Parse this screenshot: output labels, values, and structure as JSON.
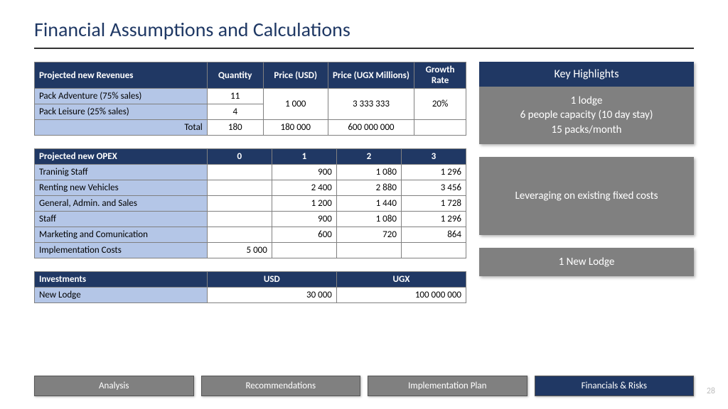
{
  "title": "Financial Assumptions and Calculations",
  "pageNumber": "28",
  "colors": {
    "titleColor": "#1f3864",
    "headerBg": "#203864",
    "rowHeadBg": "#b4c6e7",
    "panelBodyBg": "#808080",
    "tabInactiveBg": "#808080",
    "tabActiveBg": "#203864"
  },
  "revenues": {
    "headers": [
      "Projected new Revenues",
      "Quantity",
      "Price (USD)",
      "Price (UGX Millions)",
      "Growth Rate"
    ],
    "rows": [
      {
        "label": "Pack Adventure (75% sales)",
        "qty": "11"
      },
      {
        "label": "Pack Leisure (25% sales)",
        "qty": "4"
      }
    ],
    "sharedPriceUSD": "1 000",
    "sharedPriceUGX": "3 333 333",
    "sharedGrowth": "20%",
    "total": {
      "label": "Total",
      "qty": "180",
      "priceUSD": "180 000",
      "priceUGX": "600 000 000",
      "growth": ""
    }
  },
  "opex": {
    "headers": [
      "Projected new OPEX",
      "0",
      "1",
      "2",
      "3"
    ],
    "rows": [
      {
        "label": "Traninig Staff",
        "y0": "",
        "y1": "900",
        "y2": "1 080",
        "y3": "1 296"
      },
      {
        "label": "Renting new Vehicles",
        "y0": "",
        "y1": "2 400",
        "y2": "2 880",
        "y3": "3 456"
      },
      {
        "label": "General, Admin. and Sales",
        "y0": "",
        "y1": "1 200",
        "y2": "1 440",
        "y3": "1 728"
      },
      {
        "label": "Staff",
        "y0": "",
        "y1": "900",
        "y2": "1 080",
        "y3": "1 296"
      },
      {
        "label": "Marketing and Comunication",
        "y0": "",
        "y1": "600",
        "y2": "720",
        "y3": "864"
      },
      {
        "label": "Implementation Costs",
        "y0": "5 000",
        "y1": "",
        "y2": "",
        "y3": ""
      }
    ]
  },
  "investments": {
    "headers": [
      "Investments",
      "USD",
      "UGX"
    ],
    "rows": [
      {
        "label": "New Lodge",
        "usd": "30 000",
        "ugx": "100 000 000"
      }
    ]
  },
  "highlights": {
    "title": "Key Highlights",
    "lines": [
      "1 lodge",
      "6 people capacity (10 day stay)",
      "15 packs/month"
    ]
  },
  "panel2": "Leveraging on existing fixed costs",
  "panel3": "1 New Lodge",
  "tabs": [
    {
      "label": "Analysis",
      "active": false
    },
    {
      "label": "Recommendations",
      "active": false
    },
    {
      "label": "Implementation Plan",
      "active": false
    },
    {
      "label": "Financials & Risks",
      "active": true
    }
  ]
}
